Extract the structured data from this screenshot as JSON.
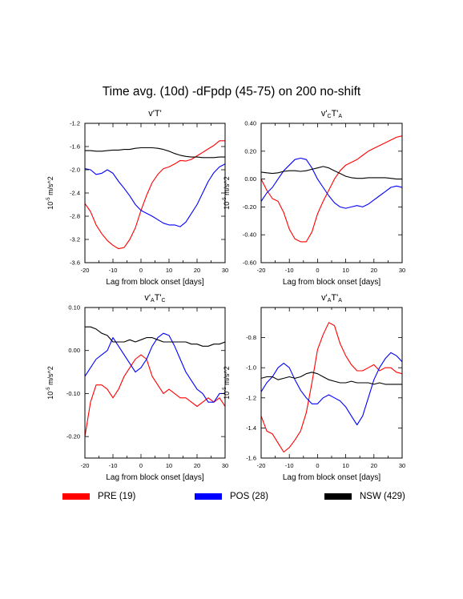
{
  "figure_title": "Time avg. (10d) -dFpdp (45-75) on 200 no-shift",
  "legend": [
    {
      "label": "PRE (19)",
      "color": "#ff0000"
    },
    {
      "label": "POS (28)",
      "color": "#0000ff"
    },
    {
      "label": "NSW (429)",
      "color": "#000000"
    }
  ],
  "chart_data": [
    {
      "type": "line",
      "title": "v'T'",
      "xlabel": "Lag from block onset [days]",
      "ylabel": "10^-5 m/s^2",
      "xlim": [
        -20,
        30
      ],
      "ylim": [
        -3.6,
        -1.2
      ],
      "xticks": [
        -20,
        -10,
        0,
        10,
        20,
        30
      ],
      "yticks": [
        -3.6,
        -3.2,
        -2.8,
        -2.4,
        -2.0,
        -1.6,
        -1.2
      ],
      "ytick_labels": [
        "-3.6",
        "-3.2",
        "-2.8",
        "-2.4",
        "-2.0",
        "-1.6",
        "-1.2"
      ],
      "x": [
        -20,
        -18,
        -16,
        -14,
        -12,
        -10,
        -8,
        -6,
        -4,
        -2,
        0,
        2,
        4,
        6,
        8,
        10,
        12,
        14,
        16,
        18,
        20,
        22,
        24,
        26,
        28,
        30
      ],
      "series": [
        {
          "name": "PRE (19)",
          "color": "#ff0000",
          "values": [
            -2.58,
            -2.72,
            -2.95,
            -3.1,
            -3.22,
            -3.3,
            -3.36,
            -3.34,
            -3.2,
            -3.0,
            -2.7,
            -2.44,
            -2.22,
            -2.08,
            -1.98,
            -1.95,
            -1.9,
            -1.84,
            -1.85,
            -1.82,
            -1.76,
            -1.7,
            -1.64,
            -1.58,
            -1.5,
            -1.5
          ]
        },
        {
          "name": "POS (28)",
          "color": "#0000ff",
          "values": [
            -1.98,
            -2.0,
            -2.08,
            -2.06,
            -2.0,
            -2.06,
            -2.2,
            -2.32,
            -2.45,
            -2.6,
            -2.7,
            -2.75,
            -2.8,
            -2.86,
            -2.92,
            -2.95,
            -2.95,
            -2.98,
            -2.9,
            -2.75,
            -2.6,
            -2.4,
            -2.2,
            -2.05,
            -1.95,
            -1.9
          ]
        },
        {
          "name": "NSW (429)",
          "color": "#000000",
          "values": [
            -1.67,
            -1.67,
            -1.68,
            -1.68,
            -1.67,
            -1.66,
            -1.66,
            -1.65,
            -1.65,
            -1.63,
            -1.62,
            -1.62,
            -1.62,
            -1.63,
            -1.65,
            -1.68,
            -1.72,
            -1.75,
            -1.77,
            -1.78,
            -1.78,
            -1.79,
            -1.79,
            -1.79,
            -1.78,
            -1.78
          ]
        }
      ]
    },
    {
      "type": "line",
      "title": "v'CT'A",
      "title_parts": {
        "v": "v'",
        "sub1": "C",
        "t": "T'",
        "sub2": "A"
      },
      "xlabel": "Lag from block onset [days]",
      "ylabel": "10^-5 m/s^2",
      "xlim": [
        -20,
        30
      ],
      "ylim": [
        -0.6,
        0.4
      ],
      "xticks": [
        -20,
        -10,
        0,
        10,
        20,
        30
      ],
      "yticks": [
        -0.6,
        -0.4,
        -0.2,
        0.0,
        0.2,
        0.4
      ],
      "ytick_labels": [
        "-0.60",
        "-0.40",
        "-0.20",
        "0.00",
        "0.20",
        "0.40"
      ],
      "x": [
        -20,
        -18,
        -16,
        -14,
        -12,
        -10,
        -8,
        -6,
        -4,
        -2,
        0,
        2,
        4,
        6,
        8,
        10,
        12,
        14,
        16,
        18,
        20,
        22,
        24,
        26,
        28,
        30
      ],
      "series": [
        {
          "name": "PRE (19)",
          "color": "#ff0000",
          "values": [
            0.0,
            -0.08,
            -0.14,
            -0.16,
            -0.24,
            -0.36,
            -0.43,
            -0.45,
            -0.45,
            -0.38,
            -0.25,
            -0.16,
            -0.08,
            -0.0,
            0.06,
            0.1,
            0.12,
            0.14,
            0.17,
            0.2,
            0.22,
            0.24,
            0.26,
            0.28,
            0.3,
            0.31
          ]
        },
        {
          "name": "POS (28)",
          "color": "#0000ff",
          "values": [
            -0.16,
            -0.1,
            -0.06,
            0.0,
            0.06,
            0.1,
            0.14,
            0.15,
            0.14,
            0.08,
            0.0,
            -0.06,
            -0.12,
            -0.17,
            -0.2,
            -0.21,
            -0.2,
            -0.19,
            -0.2,
            -0.18,
            -0.15,
            -0.12,
            -0.09,
            -0.06,
            -0.05,
            -0.06
          ]
        },
        {
          "name": "NSW (429)",
          "color": "#000000",
          "values": [
            0.05,
            0.045,
            0.04,
            0.045,
            0.055,
            0.06,
            0.06,
            0.055,
            0.06,
            0.07,
            0.08,
            0.09,
            0.08,
            0.06,
            0.04,
            0.02,
            0.01,
            0.005,
            0.005,
            0.01,
            0.01,
            0.01,
            0.01,
            0.005,
            0.0,
            0.0
          ]
        }
      ]
    },
    {
      "type": "line",
      "title": "v'AT'C",
      "title_parts": {
        "v": "v'",
        "sub1": "A",
        "t": "T'",
        "sub2": "C"
      },
      "xlabel": "Lag from block onset [days]",
      "ylabel": "10^-5 m/s^2",
      "xlim": [
        -20,
        30
      ],
      "ylim": [
        -0.25,
        0.1
      ],
      "xticks": [
        -20,
        -10,
        0,
        10,
        20,
        30
      ],
      "yticks": [
        -0.2,
        -0.1,
        0.0,
        0.1
      ],
      "ytick_labels": [
        "-0.20",
        "-0.10",
        "0.00",
        "0.10"
      ],
      "x": [
        -20,
        -18,
        -16,
        -14,
        -12,
        -10,
        -8,
        -6,
        -4,
        -2,
        0,
        2,
        4,
        6,
        8,
        10,
        12,
        14,
        16,
        18,
        20,
        22,
        24,
        26,
        28,
        30
      ],
      "series": [
        {
          "name": "PRE (19)",
          "color": "#ff0000",
          "values": [
            -0.2,
            -0.12,
            -0.08,
            -0.08,
            -0.09,
            -0.11,
            -0.09,
            -0.06,
            -0.04,
            -0.02,
            -0.01,
            -0.02,
            -0.06,
            -0.08,
            -0.1,
            -0.09,
            -0.1,
            -0.11,
            -0.11,
            -0.12,
            -0.13,
            -0.12,
            -0.11,
            -0.12,
            -0.11,
            -0.13
          ]
        },
        {
          "name": "POS (28)",
          "color": "#0000ff",
          "values": [
            -0.06,
            -0.04,
            -0.02,
            -0.01,
            0.0,
            0.03,
            0.01,
            -0.01,
            -0.03,
            -0.05,
            -0.04,
            -0.02,
            0.01,
            0.03,
            0.04,
            0.035,
            0.01,
            -0.02,
            -0.05,
            -0.07,
            -0.09,
            -0.1,
            -0.12,
            -0.12,
            -0.1,
            -0.1
          ]
        },
        {
          "name": "NSW (429)",
          "color": "#000000",
          "values": [
            0.055,
            0.055,
            0.05,
            0.04,
            0.035,
            0.02,
            0.02,
            0.02,
            0.025,
            0.02,
            0.025,
            0.03,
            0.03,
            0.025,
            0.02,
            0.02,
            0.02,
            0.02,
            0.02,
            0.015,
            0.015,
            0.01,
            0.01,
            0.015,
            0.015,
            0.02
          ]
        }
      ]
    },
    {
      "type": "line",
      "title": "v'AT'A",
      "title_parts": {
        "v": "v'",
        "sub1": "A",
        "t": "T'",
        "sub2": "A"
      },
      "xlabel": "Lag from block onset [days]",
      "ylabel": "10^-5 m/s^2",
      "xlim": [
        -20,
        30
      ],
      "ylim": [
        -1.6,
        -0.6
      ],
      "xticks": [
        -20,
        -10,
        0,
        10,
        20,
        30
      ],
      "yticks": [
        -1.6,
        -1.4,
        -1.2,
        -1.0,
        -0.8
      ],
      "ytick_labels": [
        "-1.6",
        "-1.4",
        "-1.2",
        "-1.0",
        "-0.8"
      ],
      "x": [
        -20,
        -18,
        -16,
        -14,
        -12,
        -10,
        -8,
        -6,
        -4,
        -2,
        0,
        2,
        4,
        6,
        8,
        10,
        12,
        14,
        16,
        18,
        20,
        22,
        24,
        26,
        28,
        30
      ],
      "series": [
        {
          "name": "PRE (19)",
          "color": "#ff0000",
          "values": [
            -1.32,
            -1.42,
            -1.44,
            -1.5,
            -1.56,
            -1.53,
            -1.48,
            -1.42,
            -1.3,
            -1.1,
            -0.88,
            -0.78,
            -0.7,
            -0.72,
            -0.84,
            -0.92,
            -0.98,
            -1.02,
            -1.02,
            -1.0,
            -0.98,
            -1.02,
            -1.0,
            -1.0,
            -1.03,
            -1.04
          ]
        },
        {
          "name": "POS (28)",
          "color": "#0000ff",
          "values": [
            -1.16,
            -1.1,
            -1.06,
            -1.0,
            -0.97,
            -1.0,
            -1.08,
            -1.15,
            -1.2,
            -1.24,
            -1.24,
            -1.2,
            -1.18,
            -1.2,
            -1.22,
            -1.26,
            -1.32,
            -1.38,
            -1.32,
            -1.2,
            -1.08,
            -1.0,
            -0.94,
            -0.9,
            -0.92,
            -0.96
          ]
        },
        {
          "name": "NSW (429)",
          "color": "#000000",
          "values": [
            -1.07,
            -1.06,
            -1.06,
            -1.08,
            -1.07,
            -1.06,
            -1.07,
            -1.06,
            -1.04,
            -1.03,
            -1.04,
            -1.06,
            -1.08,
            -1.09,
            -1.1,
            -1.1,
            -1.09,
            -1.1,
            -1.1,
            -1.1,
            -1.11,
            -1.1,
            -1.11,
            -1.11,
            -1.11,
            -1.11
          ]
        }
      ]
    }
  ]
}
